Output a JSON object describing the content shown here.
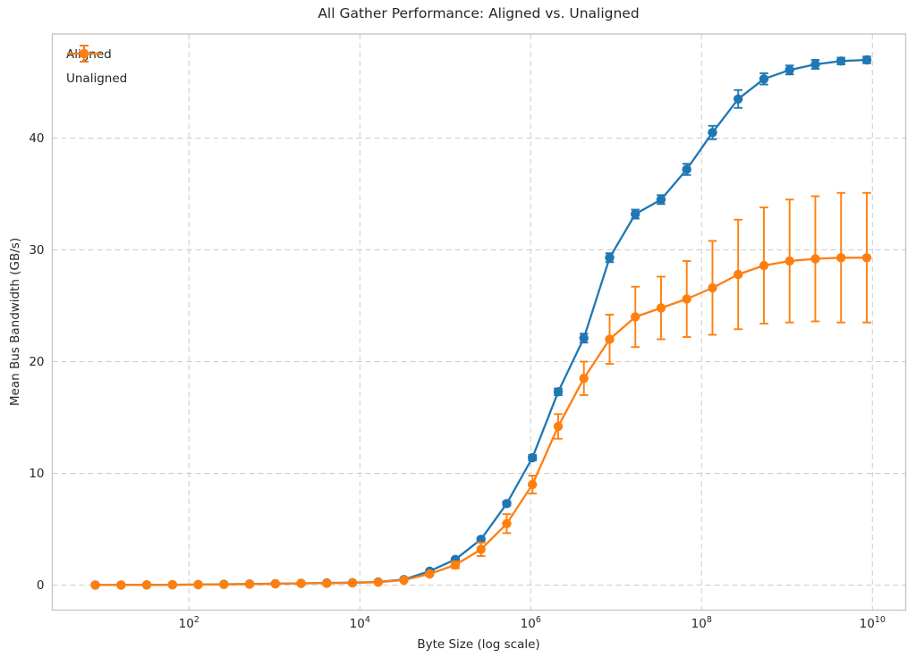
{
  "chart_data": {
    "type": "line",
    "title": "All Gather Performance: Aligned vs. Unaligned",
    "xlabel": "Byte Size (log scale)",
    "ylabel": "Mean Bus Bandwidth (GB/s)",
    "x_scale": "log",
    "grid": true,
    "legend_position": "upper left",
    "background_color": "#ffffff",
    "grid_color": "#cccccc",
    "spine_color": "#c4c4c4",
    "text_color": "#262626",
    "xlim_log10": [
      0.4,
      10.39
    ],
    "ylim": [
      -2.24,
      49.32
    ],
    "xtick_base": "10",
    "xtick_exponents": [
      2,
      4,
      6,
      8,
      10
    ],
    "yticks": [
      0,
      10,
      20,
      30,
      40
    ],
    "x": [
      8,
      16,
      32,
      64,
      128,
      256,
      512,
      1024,
      2048,
      4096,
      8192,
      16384,
      32768,
      65536,
      131072,
      262144,
      524288,
      1048576,
      2097152,
      4194304,
      8388608,
      16777216,
      33554432,
      67108864,
      134217728,
      268435456,
      536870912,
      1073741824,
      2147483648,
      4294967296,
      8589934592
    ],
    "series": [
      {
        "name": "Aligned",
        "color": "#1f77b4",
        "values": [
          0.01,
          0.01,
          0.02,
          0.03,
          0.05,
          0.07,
          0.1,
          0.13,
          0.16,
          0.19,
          0.22,
          0.28,
          0.5,
          1.25,
          2.3,
          4.1,
          7.3,
          11.4,
          17.3,
          22.1,
          29.3,
          33.2,
          34.5,
          37.2,
          40.5,
          43.5,
          45.3,
          46.1,
          46.6,
          46.9,
          47.0
        ],
        "errors": [
          0,
          0,
          0,
          0,
          0,
          0,
          0,
          0,
          0,
          0,
          0.02,
          0.03,
          0.05,
          0.08,
          0.1,
          0.15,
          0.2,
          0.25,
          0.3,
          0.4,
          0.4,
          0.4,
          0.4,
          0.5,
          0.6,
          0.8,
          0.5,
          0.4,
          0.4,
          0.3,
          0.3
        ]
      },
      {
        "name": "Unaligned",
        "color": "#ff7f0e",
        "values": [
          0.01,
          0.01,
          0.02,
          0.03,
          0.04,
          0.06,
          0.09,
          0.12,
          0.15,
          0.17,
          0.2,
          0.26,
          0.45,
          1.0,
          1.8,
          3.2,
          5.5,
          9.0,
          14.2,
          18.5,
          22.0,
          24.0,
          24.8,
          25.6,
          26.6,
          27.8,
          28.6,
          29.0,
          29.2,
          29.3,
          29.3
        ],
        "errors": [
          0,
          0,
          0,
          0,
          0,
          0,
          0,
          0,
          0,
          0,
          0.02,
          0.04,
          0.08,
          0.15,
          0.3,
          0.6,
          0.85,
          0.8,
          1.1,
          1.5,
          2.2,
          2.7,
          2.8,
          3.4,
          4.2,
          4.9,
          5.2,
          5.5,
          5.6,
          5.8,
          5.8
        ]
      }
    ]
  }
}
